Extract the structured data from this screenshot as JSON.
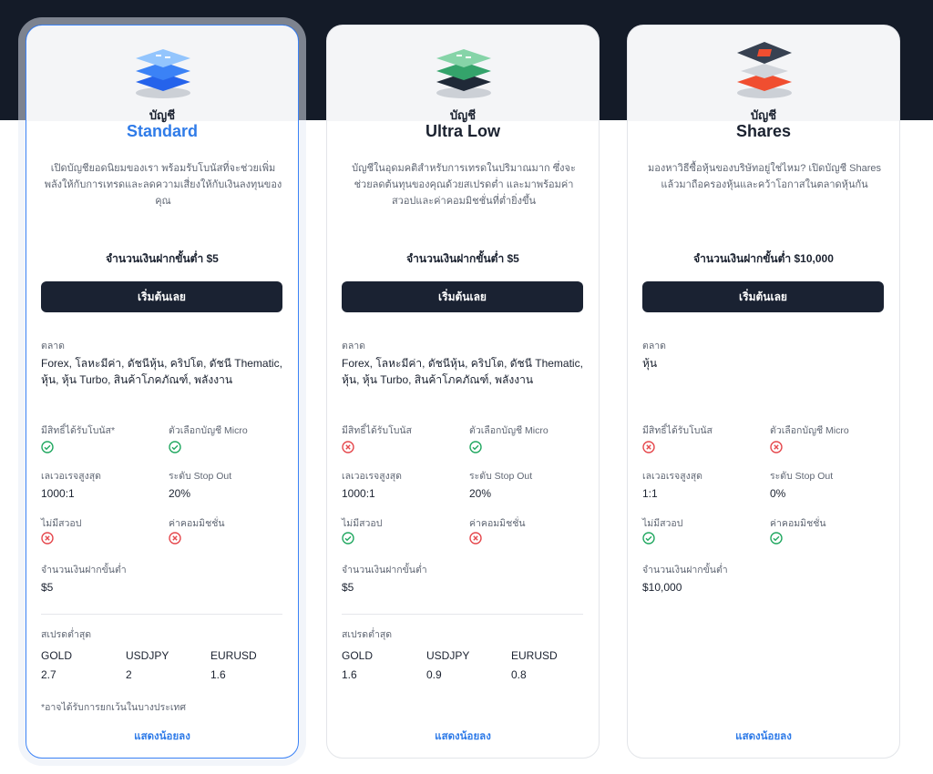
{
  "colors": {
    "accent": "#2f7be8",
    "check": "#22a861",
    "cross": "#e5484d",
    "button": "#1a2232"
  },
  "labels": {
    "market": "ตลาด",
    "bonus": "มีสิทธิ์ได้รับโบนัส",
    "micro": "ตัวเลือกบัญชี Micro",
    "leverage": "เลเวอเรจสูงสุด",
    "stopout": "ระดับ Stop Out",
    "noswap": "ไม่มีสวอป",
    "commission": "ค่าคอมมิชชั่น",
    "mindep": "จำนวนเงินฝากขั้นต่ำ",
    "spread": "สเปรดต่ำสุด"
  },
  "cards": [
    {
      "prefix": "บัญชี",
      "name": "Standard",
      "icon": "blue-layers-icon",
      "desc": "เปิดบัญชียอดนิยมของเรา พร้อมรับโบนัสที่จะช่วยเพิ่มพลังให้กับการเทรดและลดความเสี่ยงให้กับเงินลงทุนของคุณ",
      "deposit": "จำนวนเงินฝากขั้นต่ำ $5",
      "button": "เริ่มต้นเลย",
      "market_label": "ตลาด",
      "markets": "Forex, โลหะมีค่า, ดัชนีหุ้น, คริปโต, ดัชนี Thematic, หุ้น, หุ้น Turbo, สินค้าโภคภัณฑ์, พลังงาน",
      "bonus_label": "มีสิทธิ์ได้รับโบนัส*",
      "bonus": "check",
      "micro": "check",
      "leverage": "1000:1",
      "stopout": "20%",
      "noswap": "cross",
      "commission": "cross",
      "mindep": "$5",
      "spread": [
        {
          "pair": "GOLD",
          "value": "2.7"
        },
        {
          "pair": "USDJPY",
          "value": "2"
        },
        {
          "pair": "EURUSD",
          "value": "1.6"
        }
      ],
      "footnote": "*อาจได้รับการยกเว้นในบางประเทศ",
      "show_less": "แสดงน้อยลง"
    },
    {
      "prefix": "บัญชี",
      "name": "Ultra Low",
      "icon": "green-layers-icon",
      "desc": "บัญชีในอุดมคติสำหรับการเทรดในปริมาณมาก ซึ่งจะช่วยลดต้นทุนของคุณด้วยสเปรดต่ำ และมาพร้อมค่าสวอปและค่าคอมมิชชั่นที่ต่ำยิ่งขึ้น",
      "deposit": "จำนวนเงินฝากขั้นต่ำ $5",
      "button": "เริ่มต้นเลย",
      "market_label": "ตลาด",
      "markets": "Forex, โลหะมีค่า, ดัชนีหุ้น, คริปโต, ดัชนี Thematic, หุ้น, หุ้น Turbo, สินค้าโภคภัณฑ์, พลังงาน",
      "bonus_label": "มีสิทธิ์ได้รับโบนัส",
      "bonus": "cross",
      "micro": "check",
      "leverage": "1000:1",
      "stopout": "20%",
      "noswap": "check",
      "commission": "cross",
      "mindep": "$5",
      "spread": [
        {
          "pair": "GOLD",
          "value": "1.6"
        },
        {
          "pair": "USDJPY",
          "value": "0.9"
        },
        {
          "pair": "EURUSD",
          "value": "0.8"
        }
      ],
      "show_less": "แสดงน้อยลง"
    },
    {
      "prefix": "บัญชี",
      "name": "Shares",
      "icon": "red-chip-icon",
      "desc": "มองหาวิธีซื้อหุ้นของบริษัทอยู่ใช่ไหม? เปิดบัญชี Shares แล้วมาถือครองหุ้นและคว้าโอกาสในตลาดหุ้นกัน",
      "deposit": "จำนวนเงินฝากขั้นต่ำ $10,000",
      "button": "เริ่มต้นเลย",
      "market_label": "ตลาด",
      "markets": "หุ้น",
      "bonus_label": "มีสิทธิ์ได้รับโบนัส",
      "bonus": "cross",
      "micro": "cross",
      "leverage": "1:1",
      "stopout": "0%",
      "noswap": "check",
      "commission": "check",
      "mindep": "$10,000",
      "show_less": "แสดงน้อยลง"
    }
  ]
}
